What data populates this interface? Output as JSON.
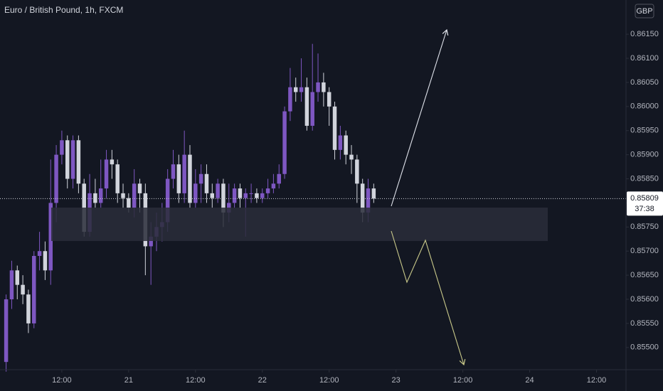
{
  "chart_data": {
    "type": "candlestick",
    "title": "Euro / British Pound, 1h, FXCM",
    "currency": "GBP",
    "up_color": "#7e57c2",
    "down_color": "#d1d4dc",
    "x": [
      2,
      3,
      4,
      5,
      6,
      7,
      8,
      9,
      10,
      11,
      12,
      13,
      14,
      15,
      16,
      17,
      18,
      19,
      20,
      21,
      22,
      23,
      24,
      25,
      26,
      27,
      28,
      29,
      30,
      31,
      32,
      33,
      34,
      35,
      36,
      37,
      38,
      39,
      40,
      41,
      42,
      43,
      44,
      45,
      46,
      47,
      48,
      49,
      50,
      51,
      52,
      53,
      54,
      55,
      56,
      57,
      58,
      59,
      60,
      61,
      62,
      63,
      64,
      65,
      66,
      67,
      68
    ],
    "open": [
      0.8547,
      0.856,
      0.8566,
      0.8563,
      0.8561,
      0.8555,
      0.8569,
      0.857,
      0.8566,
      0.858,
      0.859,
      0.8593,
      0.8585,
      0.8593,
      0.8584,
      0.8574,
      0.8582,
      0.858,
      0.8583,
      0.8589,
      0.8588,
      0.8582,
      0.8581,
      0.8579,
      0.8584,
      0.8582,
      0.8571,
      0.8573,
      0.8575,
      0.8576,
      0.8585,
      0.8588,
      0.8582,
      0.859,
      0.858,
      0.8584,
      0.8586,
      0.8582,
      0.8581,
      0.8584,
      0.8578,
      0.858,
      0.8583,
      0.8581,
      0.8582,
      0.8582,
      0.8581,
      0.8582,
      0.8583,
      0.8584,
      0.8586,
      0.8599,
      0.8604,
      0.8603,
      0.8604,
      0.8596,
      0.8603,
      0.8605,
      0.8603,
      0.86,
      0.8591,
      0.8594,
      0.859,
      0.8589,
      0.8584,
      0.8578,
      0.8583
    ],
    "high": [
      0.8561,
      0.8568,
      0.8567,
      0.8565,
      0.8562,
      0.857,
      0.8574,
      0.8572,
      0.8589,
      0.8592,
      0.8595,
      0.8594,
      0.8594,
      0.8594,
      0.8585,
      0.8586,
      0.8585,
      0.8589,
      0.8591,
      0.8591,
      0.8589,
      0.8584,
      0.8582,
      0.8587,
      0.8585,
      0.8584,
      0.8576,
      0.8578,
      0.858,
      0.8587,
      0.8591,
      0.859,
      0.8595,
      0.8592,
      0.8587,
      0.8588,
      0.8588,
      0.8584,
      0.8585,
      0.8585,
      0.8584,
      0.8584,
      0.8584,
      0.8583,
      0.8584,
      0.8583,
      0.8583,
      0.8585,
      0.8586,
      0.8588,
      0.86,
      0.8608,
      0.8606,
      0.861,
      0.8606,
      0.8613,
      0.8611,
      0.8607,
      0.8604,
      0.8601,
      0.8596,
      0.8595,
      0.8592,
      0.859,
      0.8585,
      0.8585,
      0.8584
    ],
    "low": [
      0.8545,
      0.8558,
      0.856,
      0.8559,
      0.8553,
      0.8554,
      0.8566,
      0.8564,
      0.8563,
      0.8576,
      0.8588,
      0.8583,
      0.8583,
      0.8582,
      0.8573,
      0.8573,
      0.8579,
      0.8579,
      0.8581,
      0.8585,
      0.858,
      0.8579,
      0.8578,
      0.8577,
      0.8578,
      0.8565,
      0.8563,
      0.857,
      0.8572,
      0.8574,
      0.8583,
      0.858,
      0.858,
      0.8579,
      0.8579,
      0.858,
      0.858,
      0.8579,
      0.858,
      0.8575,
      0.8576,
      0.8579,
      0.8579,
      0.8573,
      0.858,
      0.858,
      0.858,
      0.8581,
      0.8582,
      0.8583,
      0.8585,
      0.8597,
      0.8601,
      0.8601,
      0.8595,
      0.8595,
      0.8601,
      0.86,
      0.8596,
      0.8589,
      0.8589,
      0.8588,
      0.8586,
      0.858,
      0.8576,
      0.8576,
      0.858
    ],
    "close": [
      0.856,
      0.8566,
      0.8563,
      0.8561,
      0.8555,
      0.8569,
      0.857,
      0.8566,
      0.858,
      0.859,
      0.8593,
      0.8585,
      0.8593,
      0.8584,
      0.8574,
      0.8582,
      0.858,
      0.8583,
      0.8589,
      0.8588,
      0.8582,
      0.8581,
      0.8579,
      0.8584,
      0.8582,
      0.8571,
      0.8573,
      0.8575,
      0.8576,
      0.8585,
      0.8588,
      0.8582,
      0.859,
      0.858,
      0.8584,
      0.8586,
      0.8582,
      0.8581,
      0.8584,
      0.8578,
      0.858,
      0.8583,
      0.8581,
      0.8582,
      0.8582,
      0.8581,
      0.8582,
      0.8583,
      0.8584,
      0.8586,
      0.8599,
      0.8604,
      0.8603,
      0.8604,
      0.8596,
      0.8603,
      0.8605,
      0.8603,
      0.86,
      0.8591,
      0.8594,
      0.859,
      0.8589,
      0.8584,
      0.8578,
      0.8583,
      0.85809
    ],
    "xlim": [
      0.9,
      113.3
    ],
    "xticks": [
      {
        "value": 12,
        "label": "12:00"
      },
      {
        "value": 24,
        "label": "21"
      },
      {
        "value": 36,
        "label": "12:00"
      },
      {
        "value": 48,
        "label": "22"
      },
      {
        "value": 60,
        "label": "12:00"
      },
      {
        "value": 72,
        "label": "23"
      },
      {
        "value": 84,
        "label": "12:00"
      },
      {
        "value": 96,
        "label": "24"
      },
      {
        "value": 108,
        "label": "12:00"
      }
    ],
    "ylim": [
      0.85454,
      0.86221
    ],
    "yticks": [
      {
        "value": 0.855,
        "label": "0.85500"
      },
      {
        "value": 0.8555,
        "label": "0.85550"
      },
      {
        "value": 0.856,
        "label": "0.85600"
      },
      {
        "value": 0.8565,
        "label": "0.85650"
      },
      {
        "value": 0.857,
        "label": "0.85700"
      },
      {
        "value": 0.8575,
        "label": "0.85750"
      },
      {
        "value": 0.858,
        "label": "0.85800"
      },
      {
        "value": 0.8585,
        "label": "0.85850"
      },
      {
        "value": 0.859,
        "label": "0.85900"
      },
      {
        "value": 0.8595,
        "label": "0.85950"
      },
      {
        "value": 0.86,
        "label": "0.86000"
      },
      {
        "value": 0.8605,
        "label": "0.86050"
      },
      {
        "value": 0.861,
        "label": "0.86100"
      },
      {
        "value": 0.8615,
        "label": "0.86150"
      }
    ],
    "last_price": 0.85809,
    "countdown": "37:38"
  }
}
